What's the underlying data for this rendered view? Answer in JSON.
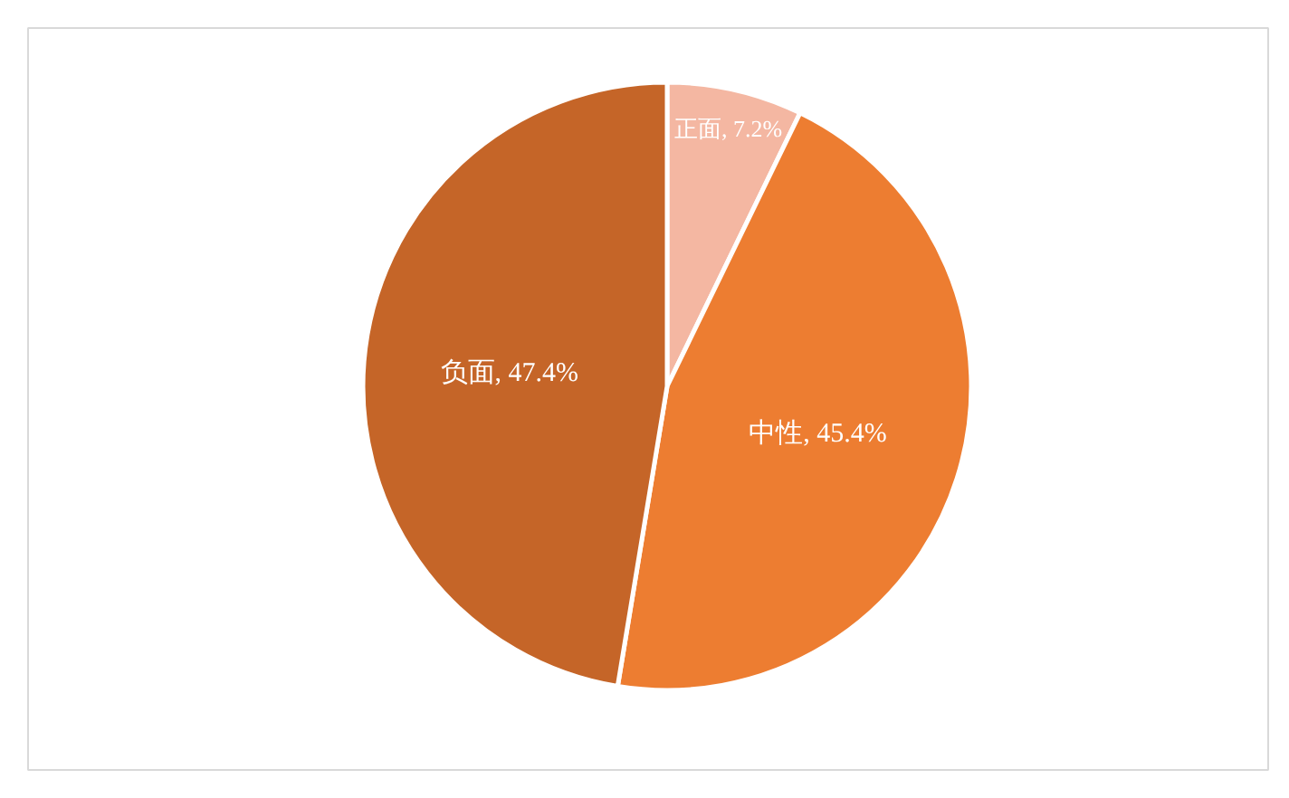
{
  "chart_data": {
    "type": "pie",
    "categories": [
      "正面",
      "中性",
      "负面"
    ],
    "values": [
      7.2,
      45.4,
      47.4
    ],
    "colors": [
      "#f4b7a2",
      "#ed7d31",
      "#c56528"
    ],
    "value_labels": [
      "7.2%",
      "45.4%",
      "47.4%"
    ]
  }
}
